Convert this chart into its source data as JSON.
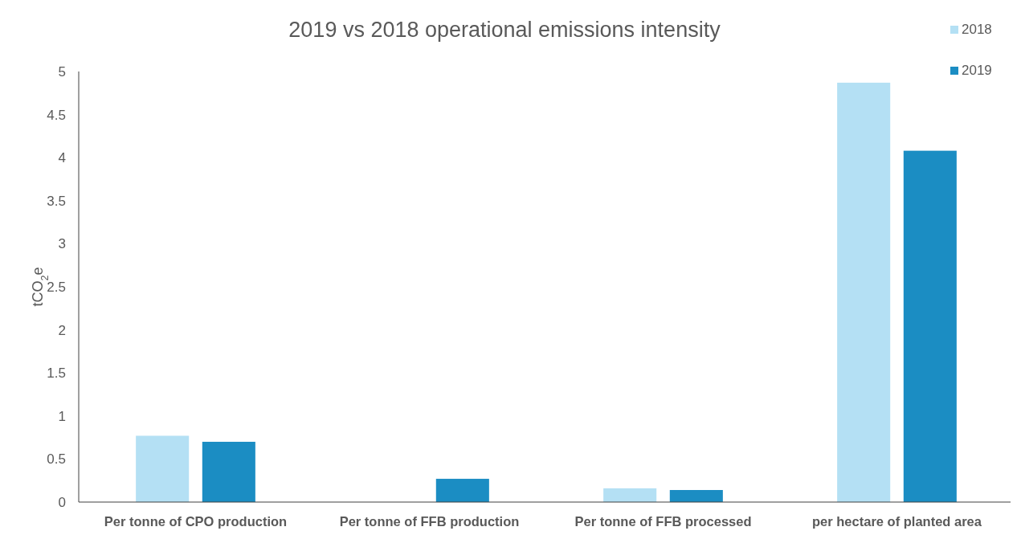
{
  "chart_data": {
    "type": "bar",
    "title": "2019 vs 2018 operational emissions intensity",
    "ylabel": "tCO$_{2}$e",
    "categories": [
      "Per tonne of CPO production",
      "Per tonne of FFB production",
      "Per tonne of FFB processed",
      "per hectare of planted area"
    ],
    "series": [
      {
        "name": "2018",
        "color": "#b4e0f4",
        "values": [
          0.77,
          null,
          0.16,
          4.87
        ]
      },
      {
        "name": "2019",
        "color": "#1b8dc3",
        "values": [
          0.7,
          0.27,
          0.14,
          4.08
        ]
      }
    ],
    "ylim": [
      0,
      5
    ],
    "yticks": [
      0,
      0.5,
      1,
      1.5,
      2,
      2.5,
      3,
      3.5,
      4,
      4.5,
      5
    ],
    "grid": false,
    "legend": "top right"
  }
}
